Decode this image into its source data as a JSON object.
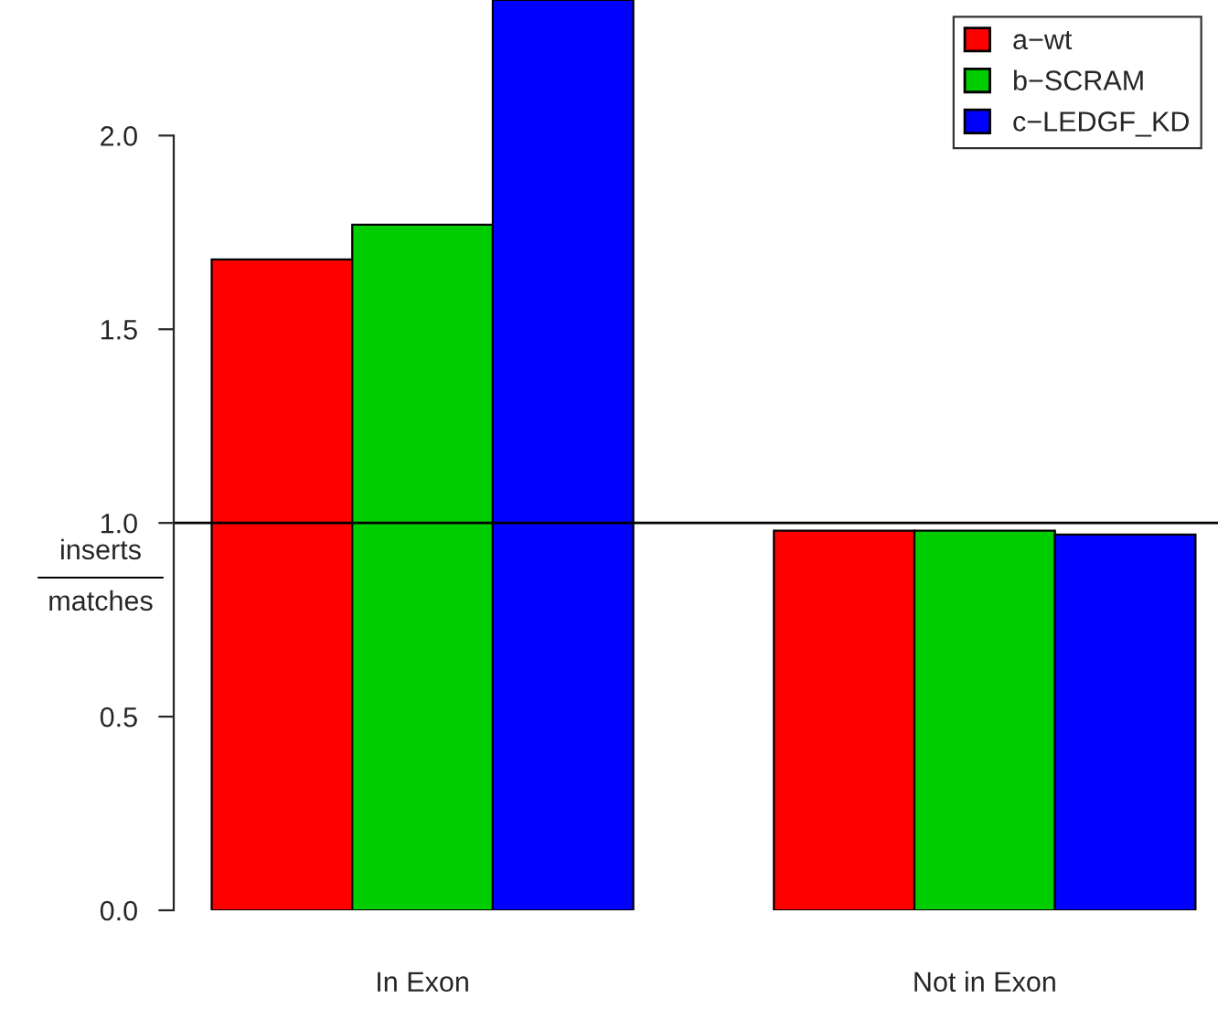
{
  "chart_data": {
    "type": "bar",
    "categories": [
      "In Exon",
      "Not in Exon"
    ],
    "series": [
      {
        "name": "a−wt",
        "color": "#ff0000",
        "values": [
          1.68,
          0.98
        ]
      },
      {
        "name": "b−SCRAM",
        "color": "#00cd00",
        "values": [
          1.77,
          0.98
        ]
      },
      {
        "name": "c−LEDGF_KD",
        "color": "#0000ff",
        "values": [
          2.35,
          0.97
        ]
      }
    ],
    "ylabel": "inserts\nmatches",
    "ylim": [
      0,
      2.35
    ],
    "yticks": [
      {
        "value": 0,
        "label": "0.0"
      },
      {
        "value": 0.5,
        "label": "0.5"
      },
      {
        "value": 1,
        "label": "1.0"
      },
      {
        "value": 1.5,
        "label": "1.5"
      },
      {
        "value": 2,
        "label": "2.0"
      }
    ],
    "ref_lines": [
      {
        "axis": "y",
        "value": 1,
        "color": "#000000"
      }
    ],
    "legend": "top right",
    "grid": false
  }
}
